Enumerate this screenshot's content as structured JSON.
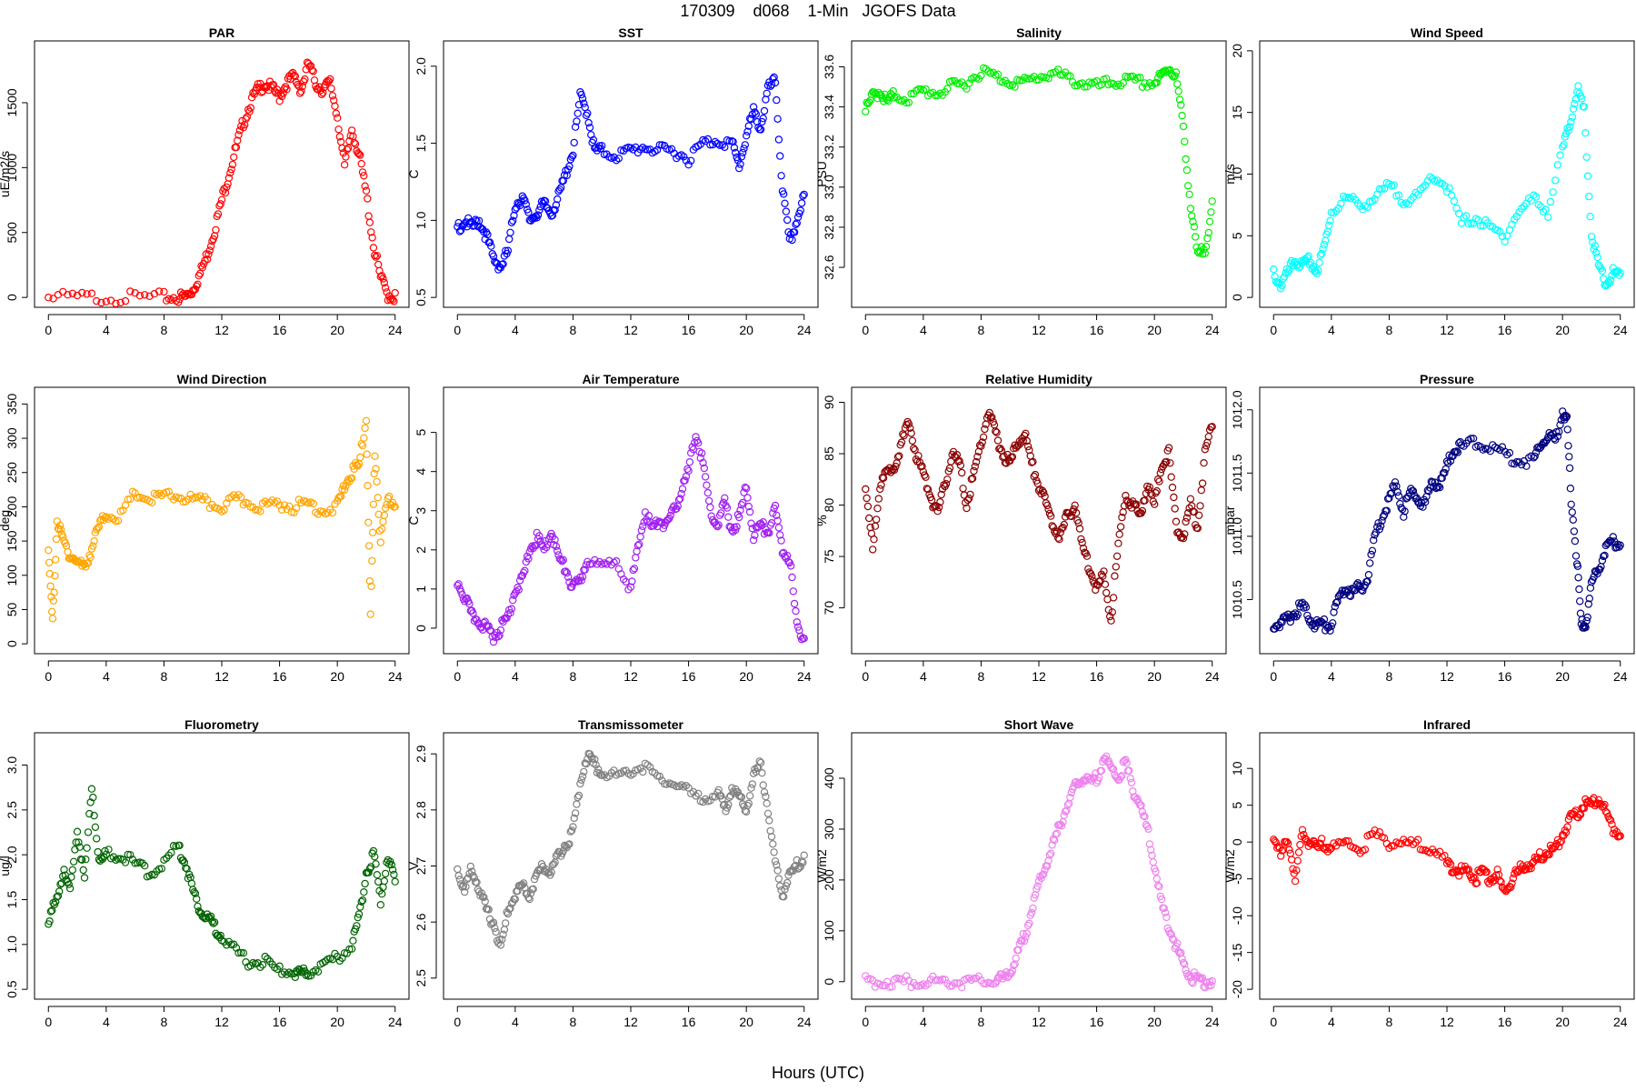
{
  "figure": {
    "title": "170309    d068    1-Min   JGOFS Data",
    "xlabel": "Hours (UTC)"
  },
  "chart_data": [
    {
      "type": "scatter",
      "title": "PAR",
      "ylabel": "uE/m2/s",
      "color": "#ff0000",
      "xlim": [
        0,
        24
      ],
      "ylim": [
        0,
        1900
      ],
      "xticks": [
        0,
        4,
        8,
        12,
        16,
        20,
        24
      ],
      "yticks": [
        0,
        500,
        1000,
        1500
      ],
      "x": [
        0,
        2,
        4,
        6,
        8,
        9,
        9.5,
        10,
        10.5,
        11,
        11.5,
        12,
        12.5,
        13,
        13.5,
        14,
        14.5,
        15,
        15.5,
        16,
        16.5,
        17,
        17.5,
        18,
        18.5,
        19,
        19.5,
        20,
        20.5,
        21,
        21.5,
        22,
        22.5,
        23,
        23.5,
        24
      ],
      "y": [
        0,
        0,
        0,
        0,
        0,
        0,
        5,
        60,
        180,
        330,
        520,
        750,
        950,
        1150,
        1350,
        1500,
        1600,
        1650,
        1600,
        1550,
        1650,
        1700,
        1600,
        1800,
        1650,
        1600,
        1650,
        1400,
        1000,
        1300,
        1100,
        800,
        400,
        150,
        20,
        0
      ]
    },
    {
      "type": "scatter",
      "title": "SST",
      "ylabel": "C",
      "color": "#0000ff",
      "xlim": [
        0,
        24
      ],
      "ylim": [
        0.5,
        2.1
      ],
      "xticks": [
        0,
        4,
        8,
        12,
        16,
        20,
        24
      ],
      "yticks": [
        0.5,
        1.0,
        1.5,
        2.0
      ],
      "x": [
        0,
        0.5,
        1,
        1.5,
        2,
        2.5,
        3,
        3.5,
        4,
        4.5,
        5,
        5.5,
        6,
        6.5,
        7,
        7.5,
        8,
        8.5,
        9,
        9.5,
        10,
        11,
        12,
        13,
        14,
        15,
        16,
        17,
        18,
        19,
        19.5,
        20,
        20.5,
        21,
        21.5,
        22,
        22.5,
        23,
        23.5,
        24
      ],
      "y": [
        0.95,
        1.0,
        0.95,
        1.0,
        0.9,
        0.75,
        0.7,
        0.8,
        1.1,
        1.15,
        1.0,
        1.05,
        1.1,
        1.05,
        1.15,
        1.3,
        1.45,
        1.8,
        1.7,
        1.45,
        1.45,
        1.42,
        1.45,
        1.48,
        1.45,
        1.45,
        1.4,
        1.5,
        1.52,
        1.5,
        1.35,
        1.55,
        1.7,
        1.6,
        1.85,
        1.9,
        1.2,
        0.85,
        1.0,
        1.15
      ]
    },
    {
      "type": "scatter",
      "title": "Salinity",
      "ylabel": "PSU",
      "color": "#00ee00",
      "xlim": [
        0,
        24
      ],
      "ylim": [
        32.45,
        33.68
      ],
      "xticks": [
        0,
        4,
        8,
        12,
        16,
        20,
        24
      ],
      "yticks": [
        32.6,
        32.8,
        33.0,
        33.2,
        33.4,
        33.6
      ],
      "x": [
        0,
        0.5,
        1,
        1.5,
        2,
        3,
        4,
        5,
        6,
        7,
        8,
        9,
        10,
        11,
        12,
        13,
        14,
        15,
        16,
        17,
        18,
        19,
        20,
        20.5,
        21,
        21.5,
        22,
        22.5,
        23,
        23.5,
        24
      ],
      "y": [
        33.38,
        33.45,
        33.48,
        33.42,
        33.46,
        33.44,
        33.48,
        33.47,
        33.5,
        33.52,
        33.58,
        33.55,
        33.53,
        33.52,
        33.55,
        33.57,
        33.54,
        33.52,
        33.5,
        33.52,
        33.53,
        33.52,
        33.52,
        33.55,
        33.6,
        33.55,
        33.3,
        32.9,
        32.65,
        32.7,
        32.9
      ]
    },
    {
      "type": "scatter",
      "title": "Wind Speed",
      "ylabel": "m/s",
      "color": "#00ffff",
      "xlim": [
        0,
        24
      ],
      "ylim": [
        0,
        20
      ],
      "xticks": [
        0,
        4,
        8,
        12,
        16,
        20,
        24
      ],
      "yticks": [
        0,
        5,
        10,
        15,
        20
      ],
      "x": [
        0,
        0.5,
        1,
        1.5,
        2,
        2.5,
        3,
        3.5,
        4,
        5,
        6,
        7,
        8,
        9,
        10,
        11,
        12,
        13,
        14,
        15,
        16,
        17,
        18,
        19,
        20,
        20.5,
        21,
        21.5,
        22,
        22.5,
        23,
        23.5,
        24
      ],
      "y": [
        2,
        1,
        2,
        3,
        2.5,
        3,
        2,
        4,
        7,
        8,
        7.5,
        8,
        9,
        8,
        8,
        10,
        9,
        6,
        6.5,
        5.5,
        5,
        7,
        8,
        7,
        12,
        14,
        17,
        15,
        5,
        2.5,
        1,
        2,
        1.5
      ]
    },
    {
      "type": "scatter",
      "title": "Wind Direction",
      "ylabel": "deg",
      "color": "#ffa500",
      "xlim": [
        0,
        24
      ],
      "ylim": [
        0,
        360
      ],
      "xticks": [
        0,
        4,
        8,
        12,
        16,
        20,
        24
      ],
      "yticks": [
        0,
        50,
        100,
        150,
        200,
        250,
        300,
        350
      ],
      "x": [
        0,
        0.3,
        0.6,
        1,
        1.5,
        2,
        2.5,
        3,
        3.5,
        4,
        5,
        6,
        7,
        8,
        9,
        10,
        11,
        12,
        13,
        14,
        15,
        16,
        17,
        18,
        19,
        20,
        20.5,
        21,
        21.5,
        22,
        22.3,
        22.6,
        23,
        23.5,
        24
      ],
      "y": [
        130,
        30,
        180,
        150,
        130,
        120,
        110,
        140,
        170,
        190,
        185,
        220,
        210,
        215,
        215,
        210,
        205,
        200,
        210,
        205,
        200,
        205,
        200,
        205,
        195,
        200,
        230,
        250,
        260,
        330,
        40,
        280,
        150,
        210,
        205
      ]
    },
    {
      "type": "scatter",
      "title": "Air Temperature",
      "ylabel": "C",
      "color": "#a020f0",
      "xlim": [
        0,
        24
      ],
      "ylim": [
        -0.4,
        5.9
      ],
      "xticks": [
        0,
        4,
        8,
        12,
        16,
        20,
        24
      ],
      "yticks": [
        0,
        1,
        2,
        3,
        4,
        5
      ],
      "x": [
        0,
        0.5,
        1,
        1.5,
        2,
        2.5,
        3,
        3.5,
        4,
        4.5,
        5,
        5.5,
        6,
        6.5,
        7,
        7.5,
        8,
        8.5,
        9,
        10,
        11,
        12,
        12.5,
        13,
        13.5,
        14,
        14.5,
        15,
        15.5,
        16,
        16.5,
        17,
        17.5,
        18,
        18.5,
        19,
        19.5,
        20,
        20.5,
        21,
        21.5,
        22,
        22.5,
        23,
        23.5,
        24
      ],
      "y": [
        1.2,
        0.8,
        0.3,
        0.2,
        0,
        -0.2,
        0,
        0.3,
        1.0,
        1.2,
        2.0,
        2.3,
        2.0,
        2.5,
        1.8,
        1.5,
        1.0,
        1.2,
        1.8,
        1.5,
        1.8,
        1.0,
        2.0,
        3.0,
        2.5,
        2.8,
        2.6,
        3.0,
        3.5,
        4.0,
        5.0,
        4.2,
        3.0,
        2.6,
        3.2,
        2.5,
        2.8,
        3.6,
        2.4,
        2.6,
        2.5,
        3.0,
        2.0,
        1.8,
        0,
        -0.2
      ]
    },
    {
      "type": "scatter",
      "title": "Relative Humidity",
      "ylabel": "%",
      "color": "#8b0000",
      "xlim": [
        0,
        24
      ],
      "ylim": [
        66.5,
        90.5
      ],
      "xticks": [
        0,
        4,
        8,
        12,
        16,
        20,
        24
      ],
      "yticks": [
        70,
        75,
        80,
        85,
        90
      ],
      "x": [
        0,
        0.5,
        1,
        1.5,
        2,
        2.5,
        3,
        3.5,
        4,
        4.5,
        5,
        5.5,
        6,
        6.5,
        7,
        7.5,
        8,
        8.5,
        9,
        9.5,
        10,
        10.5,
        11,
        11.5,
        12,
        12.5,
        13,
        13.5,
        14,
        14.5,
        15,
        15.5,
        16,
        16.5,
        17,
        17.5,
        18,
        18.5,
        19,
        19.5,
        20,
        20.5,
        21,
        21.5,
        22,
        22.5,
        23,
        23.5,
        24
      ],
      "y": [
        81,
        76,
        82,
        83,
        84,
        86,
        88,
        85,
        83,
        81,
        79,
        82,
        85,
        84,
        80,
        83,
        86,
        89,
        87,
        85,
        84,
        86,
        87,
        84,
        82,
        80,
        78,
        77,
        79,
        80,
        76,
        74,
        72,
        73,
        69,
        76,
        81,
        80,
        79,
        82,
        80,
        84,
        85,
        78,
        77,
        80,
        78,
        85,
        88
      ]
    },
    {
      "type": "scatter",
      "title": "Pressure",
      "ylabel": "mbar",
      "color": "#000080",
      "xlim": [
        0,
        24
      ],
      "ylim": [
        1010.15,
        1012.1
      ],
      "xticks": [
        0,
        4,
        8,
        12,
        16,
        20,
        24
      ],
      "yticks": [
        1010.5,
        1011.0,
        1011.5,
        1012.0
      ],
      "x": [
        0,
        0.5,
        1,
        1.5,
        2,
        2.5,
        3,
        3.5,
        4,
        4.5,
        5,
        5.5,
        6,
        6.5,
        7,
        7.5,
        8,
        8.5,
        9,
        9.5,
        10,
        10.5,
        11,
        11.5,
        12,
        12.5,
        13,
        14,
        15,
        16,
        17,
        18,
        18.5,
        19,
        19.5,
        20,
        20.3,
        20.6,
        21,
        21.3,
        21.6,
        22,
        22.5,
        23,
        23.5,
        24
      ],
      "y": [
        1010.3,
        1010.3,
        1010.35,
        1010.4,
        1010.45,
        1010.35,
        1010.3,
        1010.3,
        1010.3,
        1010.5,
        1010.6,
        1010.55,
        1010.6,
        1010.65,
        1011.0,
        1011.15,
        1011.3,
        1011.4,
        1011.2,
        1011.35,
        1011.3,
        1011.25,
        1011.45,
        1011.4,
        1011.55,
        1011.7,
        1011.7,
        1011.75,
        1011.7,
        1011.65,
        1011.6,
        1011.6,
        1011.75,
        1011.8,
        1011.75,
        1012.0,
        1011.9,
        1011.3,
        1010.8,
        1010.3,
        1010.3,
        1010.6,
        1010.75,
        1010.9,
        1010.95,
        1010.95
      ]
    },
    {
      "type": "scatter",
      "title": "Fluorometry",
      "ylabel": "ug/l",
      "color": "#006400",
      "xlim": [
        0,
        24
      ],
      "ylim": [
        0.5,
        3.25
      ],
      "xticks": [
        0,
        4,
        8,
        12,
        16,
        20,
        24
      ],
      "yticks": [
        0.5,
        1.0,
        1.5,
        2.0,
        2.5,
        3.0
      ],
      "x": [
        0,
        0.5,
        1,
        1.5,
        2,
        2.5,
        3,
        3.5,
        4,
        5,
        6,
        7,
        8,
        9,
        9.5,
        10,
        10.5,
        11,
        11.5,
        12,
        13,
        14,
        15,
        16,
        17,
        17.5,
        18,
        19,
        20,
        21,
        21.5,
        22,
        22.5,
        23,
        23.5,
        24
      ],
      "y": [
        1.2,
        1.5,
        1.8,
        1.6,
        2.3,
        1.7,
        2.8,
        1.9,
        2.0,
        2.0,
        1.9,
        1.8,
        1.9,
        2.1,
        1.9,
        1.6,
        1.4,
        1.3,
        1.2,
        1.1,
        0.9,
        0.8,
        0.8,
        0.7,
        0.7,
        0.65,
        0.7,
        0.75,
        0.85,
        1.0,
        1.3,
        1.8,
        2.0,
        1.5,
        2.0,
        1.7
      ]
    },
    {
      "type": "scatter",
      "title": "Transmissometer",
      "ylabel": "V",
      "color": "#808080",
      "xlim": [
        0,
        24
      ],
      "ylim": [
        2.48,
        2.92
      ],
      "xticks": [
        0,
        4,
        8,
        12,
        16,
        20,
        24
      ],
      "yticks": [
        2.5,
        2.6,
        2.7,
        2.8,
        2.9
      ],
      "x": [
        0,
        0.5,
        1,
        1.5,
        2,
        2.5,
        3,
        3.5,
        4,
        4.5,
        5,
        5.5,
        6,
        6.5,
        7,
        7.5,
        8,
        8.5,
        9,
        9.5,
        10,
        11,
        12,
        13,
        14,
        15,
        16,
        17,
        18,
        18.5,
        19,
        19.5,
        20,
        20.5,
        21,
        21.5,
        22,
        22.5,
        23,
        23.5,
        24
      ],
      "y": [
        2.7,
        2.65,
        2.7,
        2.66,
        2.62,
        2.6,
        2.55,
        2.62,
        2.65,
        2.66,
        2.65,
        2.68,
        2.7,
        2.69,
        2.72,
        2.74,
        2.76,
        2.85,
        2.9,
        2.88,
        2.87,
        2.86,
        2.87,
        2.88,
        2.85,
        2.85,
        2.83,
        2.82,
        2.83,
        2.8,
        2.84,
        2.82,
        2.8,
        2.86,
        2.88,
        2.8,
        2.7,
        2.65,
        2.68,
        2.7,
        2.72
      ]
    },
    {
      "type": "scatter",
      "title": "Short Wave",
      "ylabel": "W/m2",
      "color": "#ee82ee",
      "xlim": [
        0,
        24
      ],
      "ylim": [
        -15,
        470
      ],
      "xticks": [
        0,
        4,
        8,
        12,
        16,
        20,
        24
      ],
      "yticks": [
        0,
        100,
        200,
        300,
        400
      ],
      "x": [
        0,
        1,
        2,
        3,
        4,
        5,
        6,
        7,
        8,
        9,
        9.5,
        10,
        10.5,
        11,
        11.5,
        12,
        12.5,
        13,
        13.5,
        14,
        14.5,
        15,
        15.5,
        16,
        16.5,
        17,
        17.5,
        18,
        18.5,
        19,
        19.5,
        20,
        20.5,
        21,
        21.5,
        22,
        22.5,
        23,
        23.5,
        24
      ],
      "y": [
        0,
        0,
        0,
        0,
        2,
        0,
        0,
        0,
        0,
        2,
        5,
        20,
        50,
        90,
        140,
        190,
        230,
        270,
        310,
        350,
        380,
        400,
        390,
        400,
        440,
        420,
        400,
        430,
        380,
        350,
        300,
        230,
        150,
        110,
        70,
        35,
        10,
        3,
        0,
        0
      ]
    },
    {
      "type": "scatter",
      "title": "Infrared",
      "ylabel": "W/m2",
      "color": "#ff0000",
      "xlim": [
        0,
        24
      ],
      "ylim": [
        -20,
        13.5
      ],
      "xticks": [
        0,
        4,
        8,
        12,
        16,
        20,
        24
      ],
      "yticks": [
        -20,
        -15,
        -10,
        -5,
        0,
        5,
        10
      ],
      "x": [
        0,
        0.5,
        1,
        1.5,
        2,
        2.5,
        3,
        3.5,
        4,
        5,
        6,
        7,
        8,
        9,
        10,
        11,
        12,
        12.5,
        13,
        13.5,
        14,
        14.5,
        15,
        15.5,
        16,
        16.5,
        17,
        17.5,
        18,
        18.5,
        19,
        19.5,
        20,
        20.5,
        21,
        21.5,
        22,
        22.5,
        23,
        23.5,
        24
      ],
      "y": [
        1,
        -2,
        0.5,
        -5,
        1,
        0,
        -1,
        0,
        -1,
        0,
        -1,
        1,
        0,
        0,
        -0.5,
        -1,
        -3,
        -3.5,
        -4,
        -4,
        -5,
        -4,
        -5,
        -4.5,
        -7,
        -5,
        -4,
        -3,
        -3,
        -2,
        -1,
        -1,
        1,
        3,
        4,
        5,
        5,
        6,
        4,
        2,
        1
      ]
    }
  ]
}
